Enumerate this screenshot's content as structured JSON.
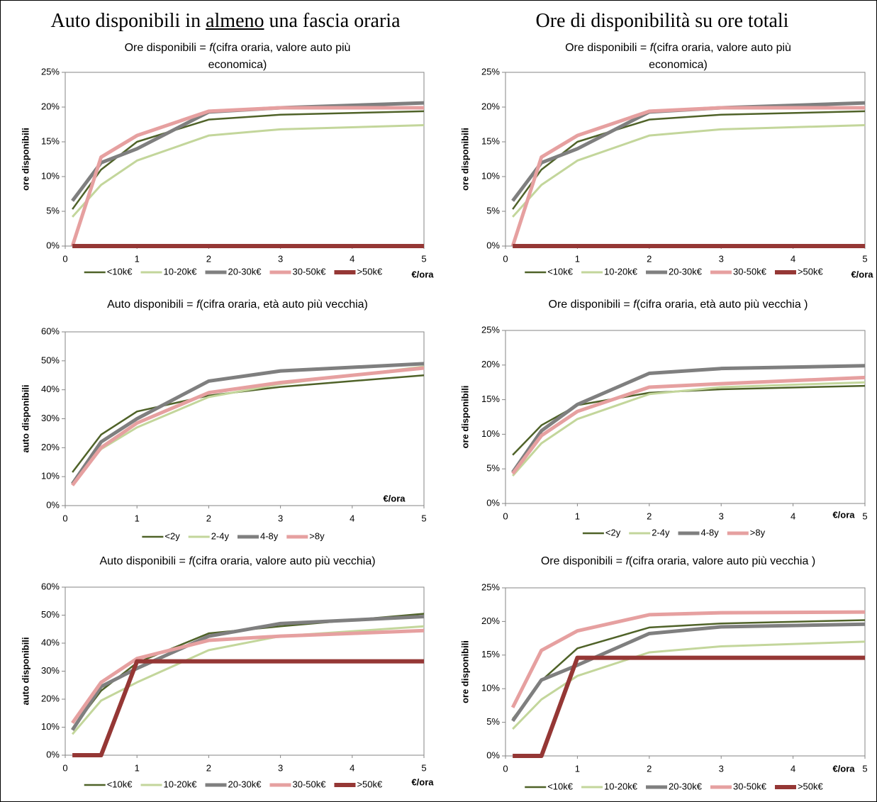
{
  "headers": [
    {
      "before": "Auto disponibili in ",
      "underlined": "almeno",
      "after": " una fascia oraria"
    },
    {
      "before": "Ore di disponibilità su ore totali",
      "underlined": "",
      "after": ""
    }
  ],
  "chart_data": [
    {
      "type": "line",
      "title": {
        "before": "Ore disponibili = ",
        "italic": "f",
        "after": "(cifra oraria, valore auto più economica)"
      },
      "y_label": "ore disponibili",
      "x_label": "€/ora",
      "x": [
        0.1,
        0.5,
        1,
        2,
        3,
        5
      ],
      "xlim": [
        0,
        5
      ],
      "xticks": [
        0,
        1,
        2,
        3,
        4,
        5
      ],
      "ylim": [
        0,
        25
      ],
      "yticks": [
        {
          "value": 0,
          "label": "0%"
        },
        {
          "value": 5,
          "label": "5%"
        },
        {
          "value": 10,
          "label": "10%"
        },
        {
          "value": 15,
          "label": "15%"
        },
        {
          "value": 20,
          "label": "20%"
        },
        {
          "value": 25,
          "label": "25%"
        }
      ],
      "series": [
        {
          "name": "<10k€",
          "color": "#4f6228",
          "values": [
            5.3,
            11,
            15,
            18.2,
            18.9,
            19.4
          ]
        },
        {
          "name": "10-20k€",
          "color": "#c3d69b",
          "values": [
            4.2,
            8.8,
            12.3,
            15.9,
            16.8,
            17.4
          ]
        },
        {
          "name": "20-30k€",
          "color": "#7f7f7f",
          "values": [
            6.5,
            12,
            14,
            19.3,
            19.9,
            20.6
          ]
        },
        {
          "name": "30-50k€",
          "color": "#e6a0a0",
          "values": [
            0,
            12.8,
            15.9,
            19.4,
            19.9,
            19.9
          ]
        },
        {
          "name": ">50k€",
          "color": "#953735",
          "values": [
            0,
            0,
            0,
            0,
            0,
            0
          ]
        }
      ]
    },
    {
      "type": "line",
      "title": {
        "before": "Ore disponibili = ",
        "italic": "f",
        "after": "(cifra oraria, valore auto più economica)"
      },
      "y_label": "ore disponibili",
      "x_label": "€/ora",
      "x": [
        0.1,
        0.5,
        1,
        2,
        3,
        5
      ],
      "xlim": [
        0,
        5
      ],
      "xticks": [
        0,
        1,
        2,
        3,
        4,
        5
      ],
      "ylim": [
        0,
        25
      ],
      "yticks": [
        {
          "value": 0,
          "label": "0%"
        },
        {
          "value": 5,
          "label": "5%"
        },
        {
          "value": 10,
          "label": "10%"
        },
        {
          "value": 15,
          "label": "15%"
        },
        {
          "value": 20,
          "label": "20%"
        },
        {
          "value": 25,
          "label": "25%"
        }
      ],
      "series": [
        {
          "name": "<10k€",
          "color": "#4f6228",
          "values": [
            5.3,
            11,
            15,
            18.2,
            18.9,
            19.4
          ]
        },
        {
          "name": "10-20k€",
          "color": "#c3d69b",
          "values": [
            4.2,
            8.8,
            12.3,
            15.9,
            16.8,
            17.4
          ]
        },
        {
          "name": "20-30k€",
          "color": "#7f7f7f",
          "values": [
            6.5,
            12,
            14,
            19.3,
            19.9,
            20.6
          ]
        },
        {
          "name": "30-50k€",
          "color": "#e6a0a0",
          "values": [
            0,
            12.8,
            15.9,
            19.4,
            19.9,
            19.9
          ]
        },
        {
          "name": ">50k€",
          "color": "#953735",
          "values": [
            0,
            0,
            0,
            0,
            0,
            0
          ]
        }
      ]
    },
    {
      "type": "line",
      "title": {
        "before": "Auto disponibili = ",
        "italic": "f",
        "after": "(cifra oraria, età auto più vecchia)"
      },
      "y_label": "auto disponibili",
      "x_label": "€/ora",
      "x": [
        0.1,
        0.5,
        1,
        2,
        3,
        5
      ],
      "xlim": [
        0,
        5
      ],
      "xticks": [
        0,
        1,
        2,
        3,
        4,
        5
      ],
      "ylim": [
        0,
        60
      ],
      "yticks": [
        {
          "value": 0,
          "label": "0%"
        },
        {
          "value": 10,
          "label": "10%"
        },
        {
          "value": 20,
          "label": "20%"
        },
        {
          "value": 30,
          "label": "30%"
        },
        {
          "value": 40,
          "label": "40%"
        },
        {
          "value": 50,
          "label": "50%"
        },
        {
          "value": 60,
          "label": "60%"
        }
      ],
      "series": [
        {
          "name": "<2y",
          "color": "#4f6228",
          "values": [
            11.5,
            24.5,
            32.5,
            38,
            41,
            45
          ]
        },
        {
          "name": "2-4y",
          "color": "#c3d69b",
          "values": [
            8,
            19.5,
            27,
            37.5,
            42,
            48
          ]
        },
        {
          "name": "4-8y",
          "color": "#7f7f7f",
          "values": [
            7.5,
            22,
            30,
            43,
            46.5,
            49
          ]
        },
        {
          "name": ">8y",
          "color": "#e6a0a0",
          "values": [
            7,
            20,
            28.5,
            39,
            42.5,
            47.5
          ]
        }
      ]
    },
    {
      "type": "line",
      "title": {
        "before": "Ore disponibili = ",
        "italic": "f",
        "after": "(cifra oraria, età auto più vecchia )"
      },
      "y_label": "ore disponibili",
      "x_label": "€/ora",
      "x": [
        0.1,
        0.5,
        1,
        2,
        3,
        5
      ],
      "xlim": [
        0,
        5
      ],
      "xticks": [
        0,
        1,
        2,
        3,
        4,
        5
      ],
      "ylim": [
        0,
        25
      ],
      "yticks": [
        {
          "value": 0,
          "label": "0%"
        },
        {
          "value": 5,
          "label": "5%"
        },
        {
          "value": 10,
          "label": "10%"
        },
        {
          "value": 15,
          "label": "15%"
        },
        {
          "value": 20,
          "label": "20%"
        },
        {
          "value": 25,
          "label": "25%"
        }
      ],
      "series": [
        {
          "name": "<2y",
          "color": "#4f6228",
          "values": [
            7,
            11.3,
            14.2,
            16,
            16.5,
            17
          ]
        },
        {
          "name": "2-4y",
          "color": "#c3d69b",
          "values": [
            4,
            8.7,
            12.2,
            15.8,
            16.8,
            17.5
          ]
        },
        {
          "name": "4-8y",
          "color": "#7f7f7f",
          "values": [
            4.5,
            10.5,
            14.3,
            18.8,
            19.5,
            19.9
          ]
        },
        {
          "name": ">8y",
          "color": "#e6a0a0",
          "values": [
            4.3,
            9.8,
            13.3,
            16.8,
            17.3,
            18.2
          ]
        }
      ]
    },
    {
      "type": "line",
      "title": {
        "before": "Auto disponibili = ",
        "italic": "f",
        "after": "(cifra oraria, valore auto più vecchia)"
      },
      "y_label": "auto disponibili",
      "x_label": "€/ora",
      "x": [
        0.1,
        0.5,
        1,
        2,
        3,
        5
      ],
      "xlim": [
        0,
        5
      ],
      "xticks": [
        0,
        1,
        2,
        3,
        4,
        5
      ],
      "ylim": [
        0,
        60
      ],
      "yticks": [
        {
          "value": 0,
          "label": "0%"
        },
        {
          "value": 10,
          "label": "10%"
        },
        {
          "value": 20,
          "label": "20%"
        },
        {
          "value": 30,
          "label": "30%"
        },
        {
          "value": 40,
          "label": "40%"
        },
        {
          "value": 50,
          "label": "50%"
        },
        {
          "value": 60,
          "label": "60%"
        }
      ],
      "series": [
        {
          "name": "<10k€",
          "color": "#4f6228",
          "values": [
            9.5,
            23,
            33,
            43.5,
            46,
            50.5
          ]
        },
        {
          "name": "10-20k€",
          "color": "#c3d69b",
          "values": [
            7.5,
            19.5,
            26,
            37.5,
            42.5,
            46
          ]
        },
        {
          "name": "20-30k€",
          "color": "#7f7f7f",
          "values": [
            9,
            24.5,
            31,
            42.5,
            47,
            49.5
          ]
        },
        {
          "name": "30-50k€",
          "color": "#e6a0a0",
          "values": [
            11.5,
            26,
            34.5,
            41,
            42.5,
            44.5
          ]
        },
        {
          "name": ">50k€",
          "color": "#953735",
          "values": [
            0,
            0,
            33.5,
            33.5,
            33.5,
            33.5
          ]
        }
      ]
    },
    {
      "type": "line",
      "title": {
        "before": "Ore disponibili = ",
        "italic": "f",
        "after": "(cifra oraria, valore auto più vecchia )"
      },
      "y_label": "ore disponibili",
      "x_label": "€/ora",
      "x": [
        0.1,
        0.5,
        1,
        2,
        3,
        5
      ],
      "xlim": [
        0,
        5
      ],
      "xticks": [
        0,
        1,
        2,
        3,
        4,
        5
      ],
      "ylim": [
        0,
        25
      ],
      "yticks": [
        {
          "value": 0,
          "label": "0%"
        },
        {
          "value": 5,
          "label": "5%"
        },
        {
          "value": 10,
          "label": "10%"
        },
        {
          "value": 15,
          "label": "15%"
        },
        {
          "value": 20,
          "label": "20%"
        },
        {
          "value": 25,
          "label": "25%"
        }
      ],
      "series": [
        {
          "name": "<10k€",
          "color": "#4f6228",
          "values": [
            5.5,
            11.2,
            16,
            19.1,
            19.7,
            20.2
          ]
        },
        {
          "name": "10-20k€",
          "color": "#c3d69b",
          "values": [
            4,
            8.4,
            11.9,
            15.4,
            16.3,
            17
          ]
        },
        {
          "name": "20-30k€",
          "color": "#7f7f7f",
          "values": [
            5.2,
            11.3,
            13.5,
            18.2,
            19.2,
            19.6
          ]
        },
        {
          "name": "30-50k€",
          "color": "#e6a0a0",
          "values": [
            7.2,
            15.7,
            18.6,
            21,
            21.3,
            21.4
          ]
        },
        {
          "name": ">50k€",
          "color": "#953735",
          "values": [
            0,
            0,
            14.6,
            14.6,
            14.6,
            14.6
          ]
        }
      ]
    }
  ]
}
